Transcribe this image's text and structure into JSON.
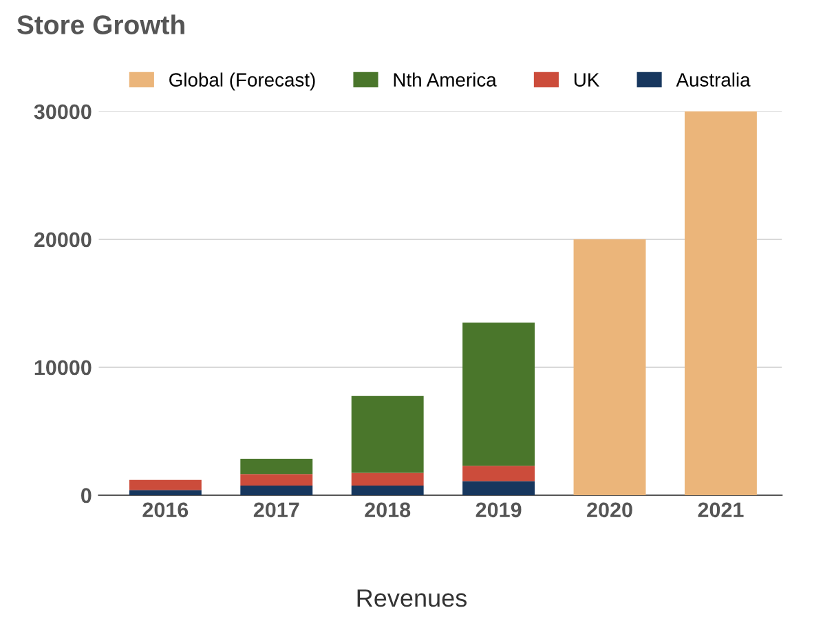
{
  "chart_data": {
    "type": "bar",
    "title": "Store Growth",
    "stacked": true,
    "categories": [
      "2016",
      "2017",
      "2018",
      "2019",
      "2020",
      "2021"
    ],
    "series": [
      {
        "name": "Australia",
        "color": "#17375e",
        "values": [
          400,
          750,
          750,
          1100,
          null,
          null
        ]
      },
      {
        "name": "UK",
        "color": "#cc4c3b",
        "values": [
          800,
          900,
          1000,
          1200,
          null,
          null
        ]
      },
      {
        "name": "Nth America",
        "color": "#4a762b",
        "values": [
          null,
          1200,
          6000,
          11200,
          null,
          null
        ]
      },
      {
        "name": "Global (Forecast)",
        "color": "#ebb57a",
        "values": [
          null,
          null,
          null,
          null,
          20000,
          30000
        ]
      }
    ],
    "ylim": [
      0,
      30000
    ],
    "yticks": [
      0,
      10000,
      20000,
      30000
    ],
    "grid": "y",
    "legend": "top",
    "annotations": [
      "Revenues"
    ]
  }
}
